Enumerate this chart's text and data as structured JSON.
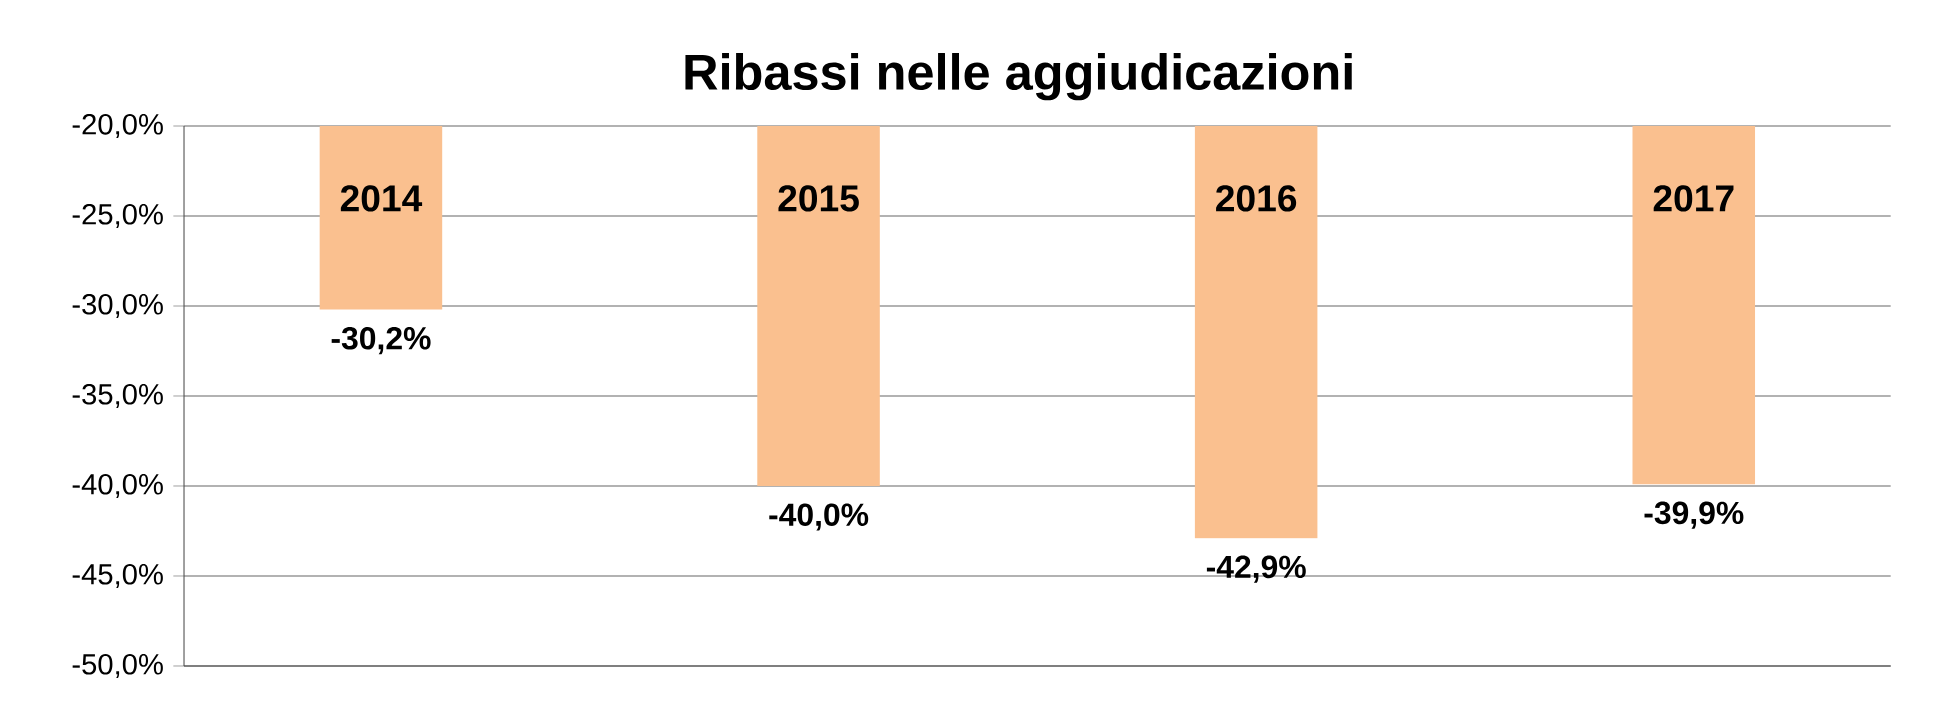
{
  "chart_data": {
    "type": "bar",
    "title": "Ribassi nelle aggiudicazioni",
    "categories": [
      "2014",
      "2015",
      "2016",
      "2017"
    ],
    "values": [
      -30.2,
      -40.0,
      -42.9,
      -39.9
    ],
    "value_labels": [
      "-30,2%",
      "-40,0%",
      "-42,9%",
      "-39,9%"
    ],
    "color": "#fac08f",
    "ylim": [
      -50,
      -20
    ],
    "yticks": [
      {
        "value": -50,
        "label": "-50,0%"
      },
      {
        "value": -45,
        "label": "-45,0%"
      },
      {
        "value": -40,
        "label": "-40,0%"
      },
      {
        "value": -35,
        "label": "-35,0%"
      },
      {
        "value": -30,
        "label": "-30,0%"
      },
      {
        "value": -25,
        "label": "-25,0%"
      },
      {
        "value": -20,
        "label": "-20,0%"
      }
    ],
    "grid": "y"
  }
}
